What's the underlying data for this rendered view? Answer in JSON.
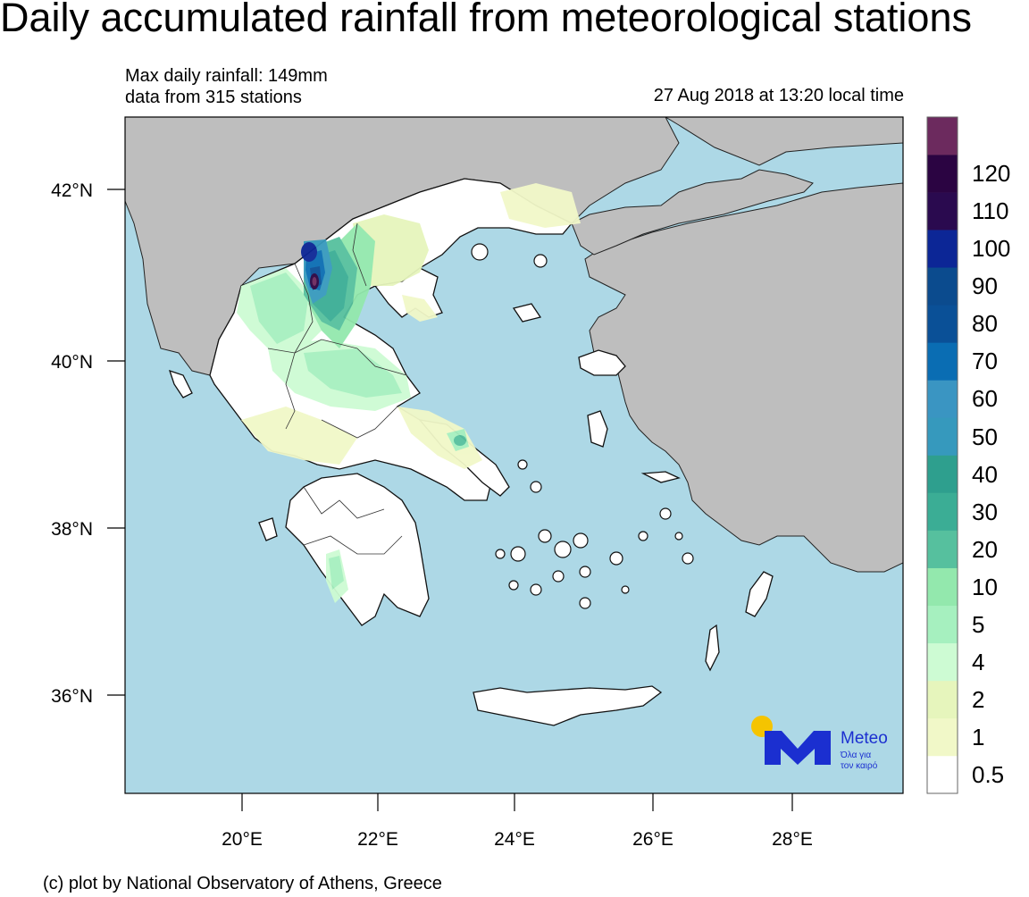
{
  "title": "Daily accumulated rainfall from meteorological stations",
  "info": {
    "max_rainfall": "Max daily rainfall: 149mm",
    "stations": "data from 315 stations",
    "datetime": "27 Aug 2018 at 13:20 local time"
  },
  "axes": {
    "lat_labels": [
      "42°N",
      "40°N",
      "38°N",
      "36°N"
    ],
    "lon_labels": [
      "20°E",
      "22°E",
      "24°E",
      "26°E",
      "28°E"
    ]
  },
  "colorbar": {
    "labels": [
      "0.5",
      "1",
      "2",
      "4",
      "5",
      "10",
      "20",
      "30",
      "40",
      "50",
      "60",
      "70",
      "80",
      "90",
      "100",
      "110",
      "120"
    ],
    "colors": [
      "#ffffff",
      "#f1f8c8",
      "#e6f5bc",
      "#cdfbd3",
      "#a6f0bf",
      "#93e8ad",
      "#56c09e",
      "#3bad95",
      "#2e9f8e",
      "#3699bd",
      "#3a95c2",
      "#0a6db3",
      "#0a5097",
      "#0b4b8e",
      "#0c2696",
      "#2a0a4f",
      "#2b0442",
      "#6c2a5e"
    ]
  },
  "colors": {
    "sea": "#add8e6",
    "land_outside": "#bebebe",
    "greece": "#ffffff",
    "logo_blue": "#1b2fd0",
    "logo_sun": "#f5c400"
  },
  "logo": {
    "name": "Meteo",
    "tagline1": "Όλα για",
    "tagline2": "τον καιρό"
  },
  "footer": "(c) plot by National Observatory of Athens, Greece"
}
